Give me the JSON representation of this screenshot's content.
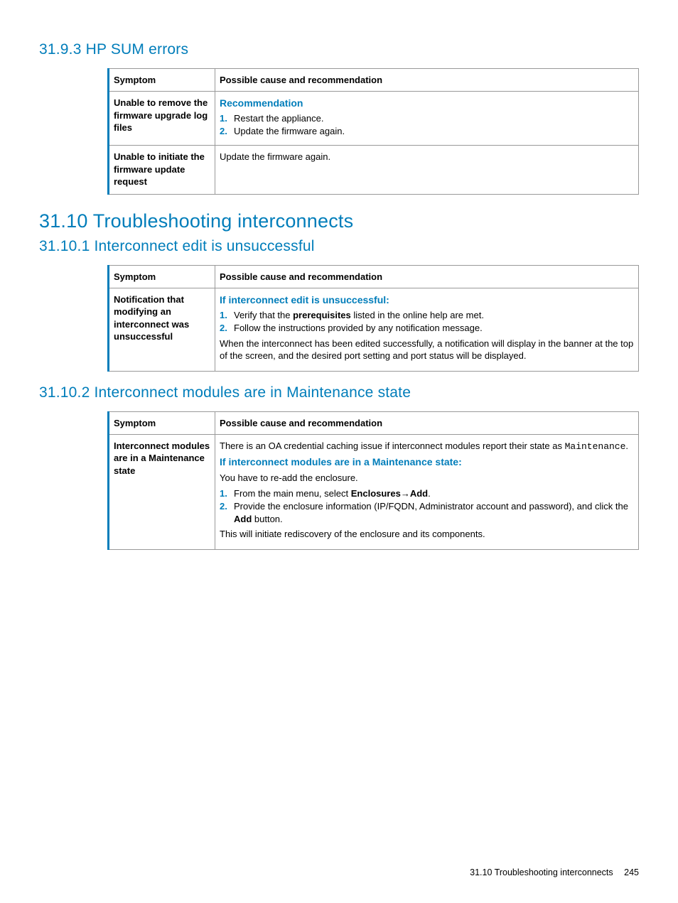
{
  "colors": {
    "accent": "#007dba",
    "border": "#999999",
    "text": "#000000",
    "bg": "#ffffff"
  },
  "section_3193": {
    "title": "31.9.3 HP SUM errors",
    "table": {
      "head_symptom": "Symptom",
      "head_cause": "Possible cause and recommendation",
      "rows": [
        {
          "symptom": "Unable to remove the firmware upgrade log files",
          "rec_head": "Recommendation",
          "steps": [
            "Restart the appliance.",
            "Update the firmware again."
          ]
        },
        {
          "symptom": "Unable to initiate the firmware update request",
          "plain": "Update the firmware again."
        }
      ]
    }
  },
  "section_3110": {
    "title": "31.10 Troubleshooting interconnects"
  },
  "section_31101": {
    "title": "31.10.1 Interconnect edit is unsuccessful",
    "table": {
      "head_symptom": "Symptom",
      "head_cause": "Possible cause and recommendation",
      "row": {
        "symptom": "Notification that modifying an interconnect was unsuccessful",
        "rec_head": "If interconnect edit is unsuccessful:",
        "step1_pre": "Verify that the ",
        "step1_bold": "prerequisites",
        "step1_post": " listed in the online help are met.",
        "step2": "Follow the instructions provided by any notification message.",
        "after": "When the interconnect has been edited successfully, a notification will display in the banner at the top of the screen, and the desired port setting and port status will be displayed."
      }
    }
  },
  "section_31102": {
    "title": "31.10.2 Interconnect modules are in Maintenance state",
    "table": {
      "head_symptom": "Symptom",
      "head_cause": "Possible cause and recommendation",
      "row": {
        "symptom": "Interconnect modules are in a Maintenance state",
        "intro_pre": "There is an OA credential caching issue if interconnect modules report their state as ",
        "intro_mono": "Maintenance",
        "intro_post": ".",
        "rec_head": "If interconnect modules are in a Maintenance state:",
        "readd": "You have to re-add the enclosure.",
        "step1_pre": "From the main menu, select ",
        "step1_bold1": "Enclosures",
        "step1_arrow": "→",
        "step1_bold2": "Add",
        "step1_post": ".",
        "step2_pre": "Provide the enclosure information (IP/FQDN, Administrator account and password), and click the ",
        "step2_bold": "Add",
        "step2_post": " button.",
        "after": "This will initiate rediscovery of the enclosure and its components."
      }
    }
  },
  "footer": {
    "text": "31.10 Troubleshooting interconnects",
    "page": "245"
  }
}
